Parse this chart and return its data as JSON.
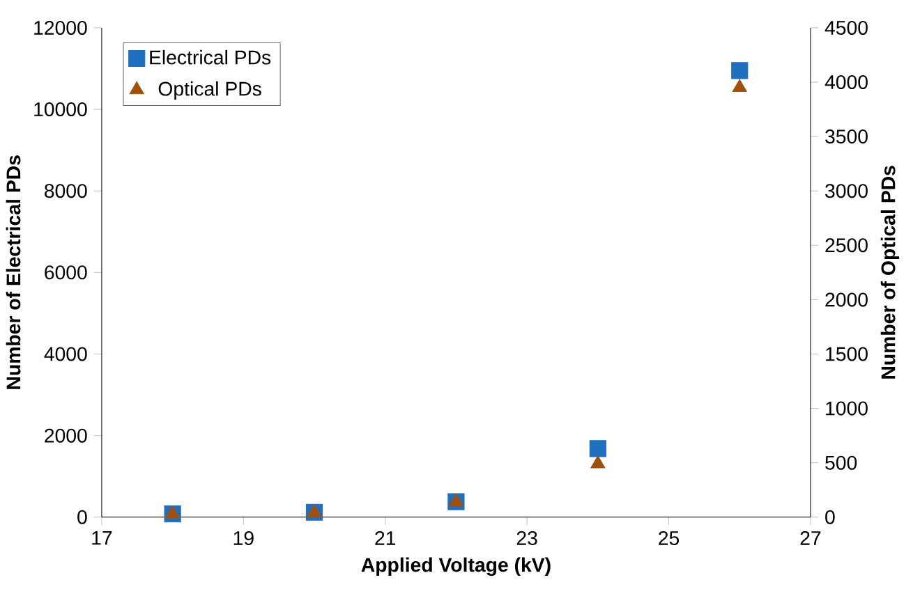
{
  "chart_data": {
    "type": "scatter",
    "xlabel": "Applied Voltage (kV)",
    "ylabel": "Number of Electrical PDs",
    "y2label": "Number of Optical PDs",
    "x": [
      18,
      20,
      22,
      24,
      26
    ],
    "series": [
      {
        "name": "Electrical PDs",
        "color": "#1f6fc0",
        "marker": "square",
        "values": [
          80,
          120,
          380,
          1680,
          10950
        ]
      },
      {
        "name": "Optical PDs",
        "color": "#a0500a",
        "marker": "triangle",
        "axis": "y2",
        "values": [
          30,
          40,
          140,
          490,
          3950
        ]
      }
    ],
    "xlim": [
      17,
      27
    ],
    "xticks": [
      17,
      19,
      21,
      23,
      25,
      27
    ],
    "ylim": [
      0,
      12000
    ],
    "yticks": [
      0,
      2000,
      4000,
      6000,
      8000,
      10000,
      12000
    ],
    "y2lim": [
      0,
      4500
    ],
    "y2ticks": [
      0,
      500,
      1000,
      1500,
      2000,
      2500,
      3000,
      3500,
      4000,
      4500
    ],
    "grid": false,
    "legend": "top left"
  }
}
